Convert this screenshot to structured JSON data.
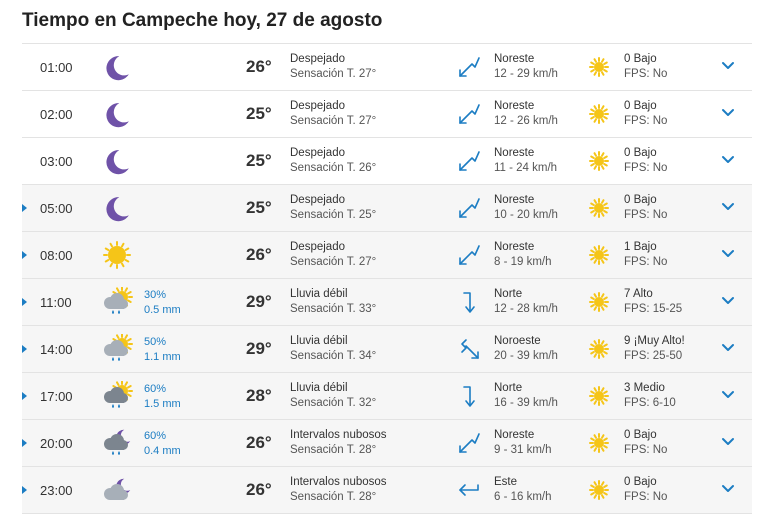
{
  "title": "Tiempo en Campeche hoy, 27 de agosto",
  "colors": {
    "accent": "#1c7dc3",
    "moon": "#6f52a8",
    "sun": "#f5c518",
    "cloud": "#9aa3ad"
  },
  "rows": [
    {
      "expandable": false,
      "time": "01:00",
      "icon": "moon-icon",
      "precip_pct": "",
      "precip_mm": "",
      "temp": "26°",
      "desc": "Despejado",
      "feels": "Sensación T. 27°",
      "wind_icon": "arrow-northeast-icon",
      "wind_dir": "Noreste",
      "wind_speed": "12 - 29 km/h",
      "uv": "0 Bajo",
      "fps": "FPS: No"
    },
    {
      "expandable": false,
      "time": "02:00",
      "icon": "moon-icon",
      "precip_pct": "",
      "precip_mm": "",
      "temp": "25°",
      "desc": "Despejado",
      "feels": "Sensación T. 27°",
      "wind_icon": "arrow-northeast-icon",
      "wind_dir": "Noreste",
      "wind_speed": "12 - 26 km/h",
      "uv": "0 Bajo",
      "fps": "FPS: No"
    },
    {
      "expandable": false,
      "time": "03:00",
      "icon": "moon-icon",
      "precip_pct": "",
      "precip_mm": "",
      "temp": "25°",
      "desc": "Despejado",
      "feels": "Sensación T. 26°",
      "wind_icon": "arrow-northeast-icon",
      "wind_dir": "Noreste",
      "wind_speed": "11 - 24 km/h",
      "uv": "0 Bajo",
      "fps": "FPS: No"
    },
    {
      "expandable": true,
      "time": "05:00",
      "icon": "moon-icon",
      "precip_pct": "",
      "precip_mm": "",
      "temp": "25°",
      "desc": "Despejado",
      "feels": "Sensación T. 25°",
      "wind_icon": "arrow-northeast-icon",
      "wind_dir": "Noreste",
      "wind_speed": "10 - 20 km/h",
      "uv": "0 Bajo",
      "fps": "FPS: No"
    },
    {
      "expandable": true,
      "time": "08:00",
      "icon": "sun-icon",
      "precip_pct": "",
      "precip_mm": "",
      "temp": "26°",
      "desc": "Despejado",
      "feels": "Sensación T. 27°",
      "wind_icon": "arrow-northeast-icon",
      "wind_dir": "Noreste",
      "wind_speed": "8 - 19 km/h",
      "uv": "1 Bajo",
      "fps": "FPS: No"
    },
    {
      "expandable": true,
      "time": "11:00",
      "icon": "sun-cloud-rain-icon",
      "precip_pct": "30%",
      "precip_mm": "0.5 mm",
      "temp": "29°",
      "desc": "Lluvia débil",
      "feels": "Sensación T. 33°",
      "wind_icon": "arrow-north-icon",
      "wind_dir": "Norte",
      "wind_speed": "12 - 28 km/h",
      "uv": "7 Alto",
      "fps": "FPS: 15-25"
    },
    {
      "expandable": true,
      "time": "14:00",
      "icon": "sun-cloud-rain-icon",
      "precip_pct": "50%",
      "precip_mm": "1.1 mm",
      "temp": "29°",
      "desc": "Lluvia débil",
      "feels": "Sensación T. 34°",
      "wind_icon": "arrow-northwest-icon",
      "wind_dir": "Noroeste",
      "wind_speed": "20 - 39 km/h",
      "uv": "9 ¡Muy Alto!",
      "fps": "FPS: 25-50"
    },
    {
      "expandable": true,
      "time": "17:00",
      "icon": "sun-darkcloud-rain-icon",
      "precip_pct": "60%",
      "precip_mm": "1.5 mm",
      "temp": "28°",
      "desc": "Lluvia débil",
      "feels": "Sensación T. 32°",
      "wind_icon": "arrow-north-icon",
      "wind_dir": "Norte",
      "wind_speed": "16 - 39 km/h",
      "uv": "3 Medio",
      "fps": "FPS: 6-10"
    },
    {
      "expandable": true,
      "time": "20:00",
      "icon": "moon-cloud-rain-icon",
      "precip_pct": "60%",
      "precip_mm": "0.4 mm",
      "temp": "26°",
      "desc": "Intervalos nubosos",
      "feels": "Sensación T. 28°",
      "wind_icon": "arrow-northeast-icon",
      "wind_dir": "Noreste",
      "wind_speed": "9 - 31 km/h",
      "uv": "0 Bajo",
      "fps": "FPS: No"
    },
    {
      "expandable": true,
      "time": "23:00",
      "icon": "moon-cloud-icon",
      "precip_pct": "",
      "precip_mm": "",
      "temp": "26°",
      "desc": "Intervalos nubosos",
      "feels": "Sensación T. 28°",
      "wind_icon": "arrow-east-icon",
      "wind_dir": "Este",
      "wind_speed": "6 - 16 km/h",
      "uv": "0 Bajo",
      "fps": "FPS: No"
    }
  ]
}
